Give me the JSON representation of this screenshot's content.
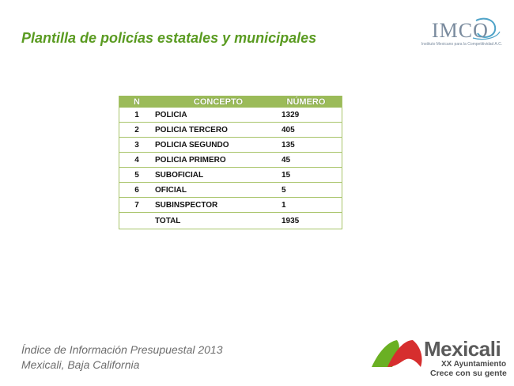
{
  "title": "Plantilla de policías estatales y municipales",
  "logo_imco": {
    "text": "IMCO",
    "subtitle": "Instituto Mexicano para la Competitividad A.C."
  },
  "table": {
    "headers": [
      "N",
      "CONCEPTO",
      "NÚMERO"
    ],
    "rows": [
      {
        "n": "1",
        "concepto": "POLICIA",
        "numero": "1329"
      },
      {
        "n": "2",
        "concepto": "POLICIA TERCERO",
        "numero": "405"
      },
      {
        "n": "3",
        "concepto": "POLICIA SEGUNDO",
        "numero": "135"
      },
      {
        "n": "4",
        "concepto": "POLICIA PRIMERO",
        "numero": "45"
      },
      {
        "n": "5",
        "concepto": "SUBOFICIAL",
        "numero": "15"
      },
      {
        "n": "6",
        "concepto": "OFICIAL",
        "numero": "5"
      },
      {
        "n": "7",
        "concepto": "SUBINSPECTOR",
        "numero": "1"
      }
    ],
    "total": {
      "n": "",
      "concepto": "TOTAL",
      "numero": "1935"
    }
  },
  "footer": {
    "line1": "Índice de Información Presupuestal 2013",
    "line2": "Mexicali, Baja California"
  },
  "logo_mexicali": {
    "name": "Mexicali",
    "line1": "XX Ayuntamiento",
    "line2": "Crece con su gente",
    "colors": {
      "green": "#6ab023",
      "red": "#d62e2e",
      "gray": "#5a5a5a"
    }
  },
  "colors": {
    "title_green": "#5a9b21",
    "header_green": "#9bbb59",
    "border_green": "#a8c46a",
    "footer_gray": "#6d6d6d"
  }
}
